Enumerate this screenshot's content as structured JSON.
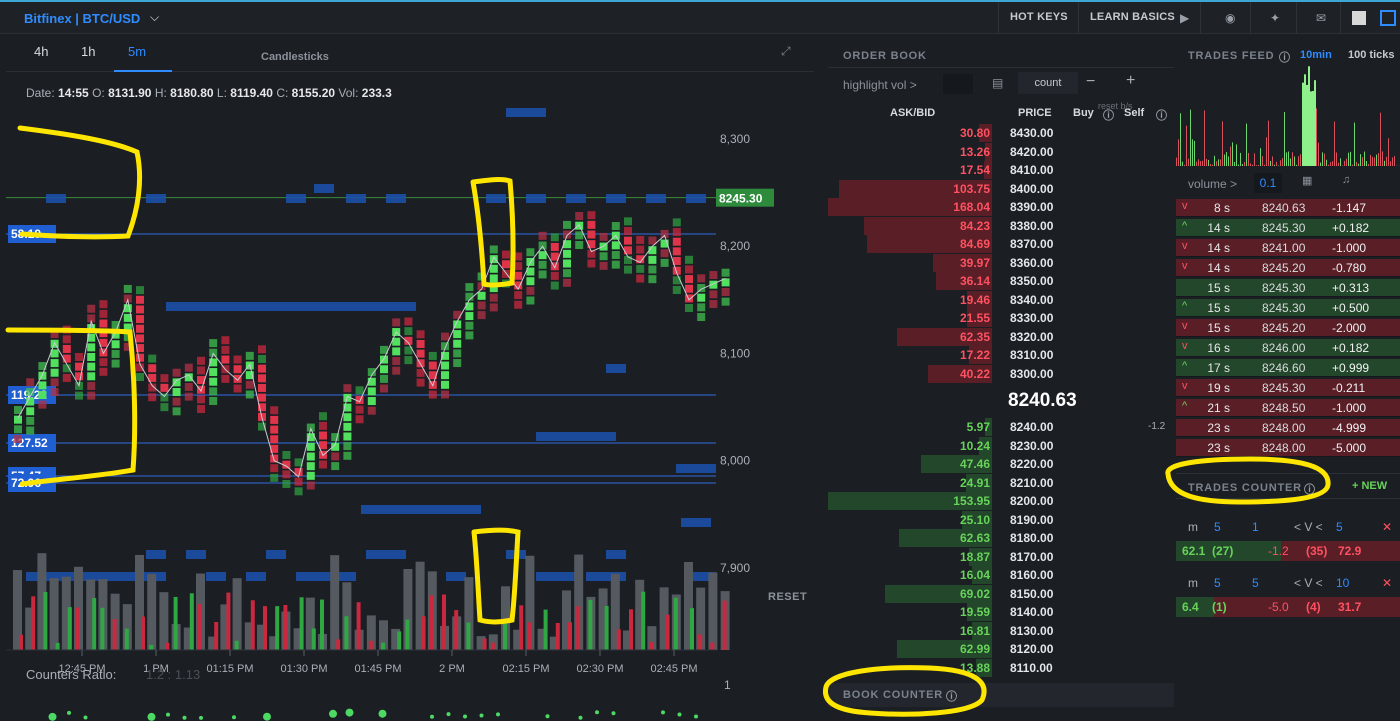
{
  "topbar": {
    "exchange": "Bitfinex | BTC/USD",
    "hotkeys": "HOT KEYS",
    "learn": "LEARN BASICS"
  },
  "chart": {
    "timeframes": [
      "4h",
      "1h",
      "5m"
    ],
    "active_timeframe": "5m",
    "type_label": "Candlesticks",
    "ohlc": {
      "date_label": "Date:",
      "date": "14:55",
      "o_label": "O:",
      "o": "8131.90",
      "h_label": "H:",
      "h": "8180.80",
      "l_label": "L:",
      "l": "8119.40",
      "c_label": "C:",
      "c": "8155.20",
      "vol_label": "Vol:",
      "vol": "233.3"
    },
    "price_ticks": [
      "8,300",
      "8,200",
      "8,100",
      "8,000",
      "7,900"
    ],
    "current_price": "8245.30",
    "time_ticks": [
      "12:45 PM",
      "1 PM",
      "01:15 PM",
      "01:30 PM",
      "01:45 PM",
      "2 PM",
      "02:15 PM",
      "02:30 PM",
      "02:45 PM"
    ],
    "level_labels": [
      "58.19",
      "119.22",
      "127.52",
      "57.47",
      "72.96"
    ],
    "reset": "RESET",
    "counters_label": "Counters Ratio:",
    "counters_value": "1.2 : 1.13",
    "counters_axis": "1",
    "colors": {
      "up": "#4cd964",
      "down": "#e0344a",
      "level": "#2f6fe0",
      "volume": "#555a61"
    }
  },
  "orderbook": {
    "title": "ORDER BOOK",
    "highlight_label": "highlight vol >",
    "count_label": "count",
    "col_askbid": "ASK/BID",
    "col_price": "PRICE",
    "col_buy": "Buy",
    "col_sell": "Self",
    "reset_bs": "reset b/s",
    "asks": [
      {
        "amt": "30.80",
        "price": "8430.00",
        "fill": 0.08
      },
      {
        "amt": "13.26",
        "price": "8420.00",
        "fill": 0.04
      },
      {
        "amt": "17.54",
        "price": "8410.00",
        "fill": 0.05
      },
      {
        "amt": "103.75",
        "price": "8400.00",
        "fill": 0.93
      },
      {
        "amt": "168.04",
        "price": "8390.00",
        "fill": 1.0
      },
      {
        "amt": "84.23",
        "price": "8380.00",
        "fill": 0.78
      },
      {
        "amt": "84.69",
        "price": "8370.00",
        "fill": 0.76
      },
      {
        "amt": "39.97",
        "price": "8360.00",
        "fill": 0.36
      },
      {
        "amt": "36.14",
        "price": "8350.00",
        "fill": 0.34
      },
      {
        "amt": "19.46",
        "price": "8340.00",
        "fill": 0.15
      },
      {
        "amt": "21.55",
        "price": "8330.00",
        "fill": 0.15
      },
      {
        "amt": "62.35",
        "price": "8320.00",
        "fill": 0.58
      },
      {
        "amt": "17.22",
        "price": "8310.00",
        "fill": 0.14
      },
      {
        "amt": "40.22",
        "price": "8300.00",
        "fill": 0.39
      }
    ],
    "mid_price": "8240.63",
    "side_value": "-1.2",
    "bids": [
      {
        "amt": "5.97",
        "price": "8240.00",
        "fill": 0.04
      },
      {
        "amt": "10.24",
        "price": "8230.00",
        "fill": 0.08
      },
      {
        "amt": "47.46",
        "price": "8220.00",
        "fill": 0.43
      },
      {
        "amt": "24.91",
        "price": "8210.00",
        "fill": 0.16
      },
      {
        "amt": "153.95",
        "price": "8200.00",
        "fill": 1.0
      },
      {
        "amt": "25.10",
        "price": "8190.00",
        "fill": 0.18
      },
      {
        "amt": "62.63",
        "price": "8180.00",
        "fill": 0.57
      },
      {
        "amt": "18.87",
        "price": "8170.00",
        "fill": 0.14
      },
      {
        "amt": "16.04",
        "price": "8160.00",
        "fill": 0.12
      },
      {
        "amt": "69.02",
        "price": "8150.00",
        "fill": 0.65
      },
      {
        "amt": "19.59",
        "price": "8140.00",
        "fill": 0.15
      },
      {
        "amt": "16.81",
        "price": "8130.00",
        "fill": 0.12
      },
      {
        "amt": "62.99",
        "price": "8120.00",
        "fill": 0.58
      },
      {
        "amt": "13.88",
        "price": "8110.00",
        "fill": 0.1
      }
    ],
    "book_counter": "BOOK COUNTER"
  },
  "trades": {
    "title": "TRADES FEED",
    "tab_active": "10min",
    "tab_other": "100 ticks",
    "volume_label": "volume >",
    "volume_value": "0.1",
    "rows": [
      {
        "age": "8 s",
        "price": "8240.63",
        "amount": "-1.147",
        "side": "sell",
        "arrow": "v"
      },
      {
        "age": "14 s",
        "price": "8245.30",
        "amount": "+0.182",
        "side": "buy",
        "arrow": "^"
      },
      {
        "age": "14 s",
        "price": "8241.00",
        "amount": "-1.000",
        "side": "sell",
        "arrow": "v"
      },
      {
        "age": "14 s",
        "price": "8245.20",
        "amount": "-0.780",
        "side": "sell",
        "arrow": "v"
      },
      {
        "age": "15 s",
        "price": "8245.30",
        "amount": "+0.313",
        "side": "buy",
        "arrow": ""
      },
      {
        "age": "15 s",
        "price": "8245.30",
        "amount": "+0.500",
        "side": "buy",
        "arrow": "^"
      },
      {
        "age": "15 s",
        "price": "8245.20",
        "amount": "-2.000",
        "side": "sell",
        "arrow": "v"
      },
      {
        "age": "16 s",
        "price": "8246.00",
        "amount": "+0.182",
        "side": "buy",
        "arrow": "v"
      },
      {
        "age": "17 s",
        "price": "8246.60",
        "amount": "+0.999",
        "side": "buy",
        "arrow": "^"
      },
      {
        "age": "19 s",
        "price": "8245.30",
        "amount": "-0.211",
        "side": "sell",
        "arrow": "v"
      },
      {
        "age": "21 s",
        "price": "8248.50",
        "amount": "-1.000",
        "side": "sell",
        "arrow": "^"
      },
      {
        "age": "23 s",
        "price": "8248.00",
        "amount": "-4.999",
        "side": "sell",
        "arrow": ""
      },
      {
        "age": "23 s",
        "price": "8248.00",
        "amount": "-5.000",
        "side": "sell",
        "arrow": ""
      }
    ],
    "counter_title": "TRADES COUNTER",
    "counter_new": "+ NEW",
    "counters": [
      {
        "m_label": "m",
        "m1": "5",
        "m2": "1",
        "v_label": "< V <",
        "v": "5",
        "left": "62.1",
        "left_count": "(27)",
        "mid": "-1.2",
        "right_count": "(35)",
        "right": "72.9",
        "green_frac": 0.47
      },
      {
        "m_label": "m",
        "m1": "5",
        "m2": "5",
        "v_label": "< V <",
        "v": "10",
        "left": "6.4",
        "left_count": "(1)",
        "mid": "-5.0",
        "right_count": "(4)",
        "right": "31.7",
        "green_frac": 0.17
      }
    ]
  }
}
